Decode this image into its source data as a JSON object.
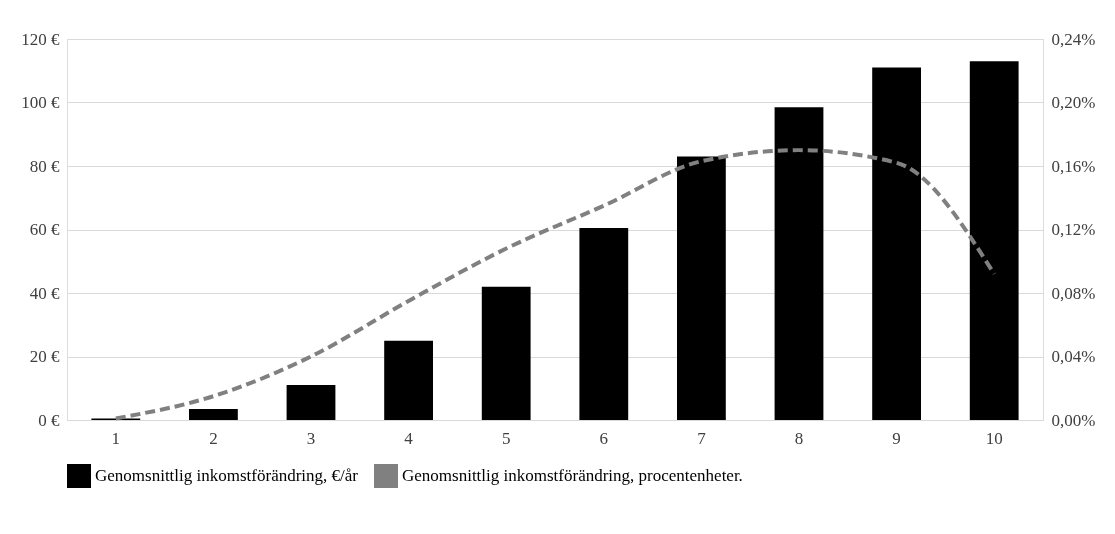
{
  "chart_data": {
    "type": "bar",
    "categories": [
      "1",
      "2",
      "3",
      "4",
      "5",
      "6",
      "7",
      "8",
      "9",
      "10"
    ],
    "series": [
      {
        "name": "Genomsnittlig inkomstförändring, €/år",
        "color": "#000000",
        "values": [
          0.5,
          3.5,
          11,
          25,
          42,
          60.5,
          83,
          98.5,
          111,
          113
        ]
      },
      {
        "name": "Genomsnittlig inkomstförändring, procentenheter.",
        "type": "line",
        "axis": "y2",
        "color": "#808080",
        "line_style": "dashed",
        "values": [
          0.001,
          0.015,
          0.04,
          0.075,
          0.108,
          0.135,
          0.163,
          0.17,
          0.162,
          0.092
        ]
      }
    ],
    "ylim": [
      0,
      120
    ],
    "yticks": [
      {
        "value": 0,
        "label": "0 €"
      },
      {
        "value": 20,
        "label": "20 €"
      },
      {
        "value": 40,
        "label": "40 €"
      },
      {
        "value": 60,
        "label": "60 €"
      },
      {
        "value": 80,
        "label": "80 €"
      },
      {
        "value": 100,
        "label": "100 €"
      },
      {
        "value": 120,
        "label": "120 €"
      }
    ],
    "y2lim": [
      0,
      0.24
    ],
    "y2ticks": [
      {
        "value": 0,
        "label": "0,00%"
      },
      {
        "value": 0.04,
        "label": "0,04%"
      },
      {
        "value": 0.08,
        "label": "0,08%"
      },
      {
        "value": 0.12,
        "label": "0,12%"
      },
      {
        "value": 0.16,
        "label": "0,16%"
      },
      {
        "value": 0.2,
        "label": "0,20%"
      },
      {
        "value": 0.24,
        "label": "0,24%"
      }
    ],
    "grid": "y",
    "legend": "bottom"
  }
}
